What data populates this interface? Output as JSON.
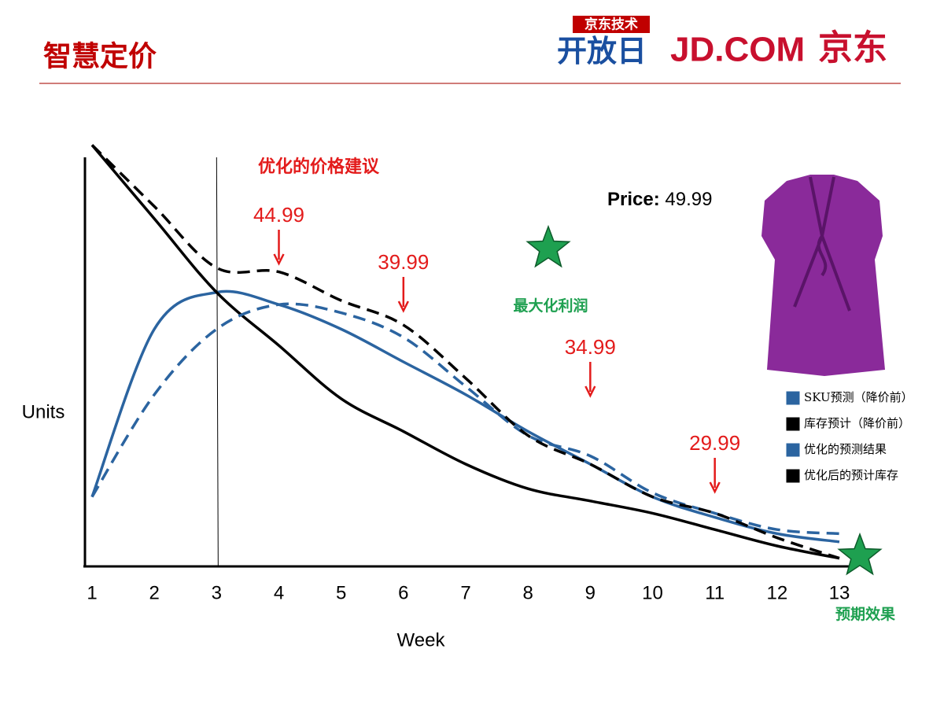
{
  "header": {
    "title": "智慧定价",
    "logo_top": "京东技术",
    "logo_main": "开放日",
    "brand": "JD.COM",
    "brand_cn": "京东"
  },
  "product": {
    "price_label": "Price:",
    "price": "49.99"
  },
  "chart_data": {
    "type": "line",
    "title": "优化的价格建议",
    "x_label": "Week",
    "y_label": "Units",
    "x": [
      1,
      2,
      3,
      4,
      5,
      6,
      7,
      8,
      9,
      10,
      11,
      12,
      13
    ],
    "xlim": [
      1,
      13
    ],
    "xticks": [
      1,
      2,
      3,
      4,
      5,
      6,
      7,
      8,
      9,
      10,
      11,
      12,
      13
    ],
    "ylim": [
      0,
      100
    ],
    "series": [
      {
        "name": "SKU预测（降价前）",
        "color": "#2b64a0",
        "dashed": false,
        "values": [
          17,
          58,
          67,
          64,
          58,
          50,
          42,
          33,
          25,
          17,
          12,
          8,
          6
        ]
      },
      {
        "name": "库存预计（降价前）",
        "color": "#000000",
        "dashed": false,
        "values": [
          103,
          85,
          67,
          54,
          41,
          33,
          25,
          19,
          16,
          13,
          9,
          5,
          2
        ]
      },
      {
        "name": "优化的预测结果",
        "color": "#2b64a0",
        "dashed": true,
        "values": [
          17,
          42,
          58,
          64,
          62,
          56,
          44,
          32,
          27,
          18,
          13,
          9,
          8
        ]
      },
      {
        "name": "优化后的预计库存",
        "color": "#000000",
        "dashed": true,
        "values": [
          103,
          88,
          73,
          72,
          65,
          59,
          46,
          32,
          25,
          17,
          13,
          7,
          2
        ]
      }
    ],
    "annotations": [
      {
        "text": "44.99",
        "x": 4
      },
      {
        "text": "39.99",
        "x": 6
      },
      {
        "text": "34.99",
        "x": 9
      },
      {
        "text": "29.99",
        "x": 11
      }
    ],
    "goal_labels": [
      "最大化利润",
      "预期效果"
    ]
  }
}
